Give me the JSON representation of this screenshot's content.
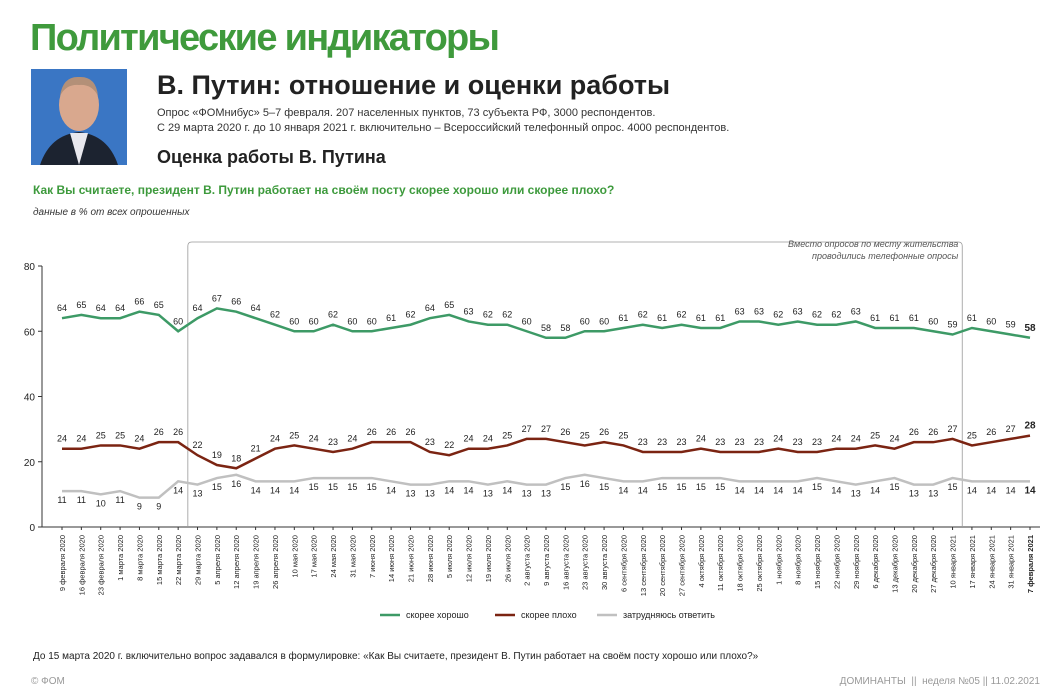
{
  "header": {
    "title": "Политические индикаторы",
    "subtitle": "В. Путин: отношение и оценки работы",
    "notes": [
      "Опрос «ФОМнибус» 5–7 февраля. 207 населенных пунктов, 73 субъекта РФ, 3000 респондентов.",
      "С 29 марта 2020 г. до 10 января 2021 г. включительно – Всероссийский телефонный опрос. 4000 респондентов."
    ],
    "section": "Оценка работы В. Путина",
    "question": "Как Вы считаете, президент В. Путин работает на своём посту скорее хорошо или скорее плохо?",
    "units": "данные в % от всех опрошенных"
  },
  "chart_data": {
    "type": "line",
    "categories": [
      "9 февраля 2020",
      "16 февраля 2020",
      "23 февраля 2020",
      "1 марта 2020",
      "8 марта 2020",
      "15 марта 2020",
      "22 марта 2020",
      "29 марта 2020",
      "5 апреля 2020",
      "12 апреля 2020",
      "19 апреля 2020",
      "26 апреля 2020",
      "10 мая 2020",
      "17 мая 2020",
      "24 мая 2020",
      "31 мая 2020",
      "7 июня 2020",
      "14 июня 2020",
      "21 июня 2020",
      "28 июня 2020",
      "5 июля 2020",
      "12 июля 2020",
      "19 июля 2020",
      "26 июля 2020",
      "2 августа 2020",
      "9 августа 2020",
      "16 августа 2020",
      "23 августа 2020",
      "30 августа 2020",
      "6 сентября 2020",
      "13 сентября 2020",
      "20 сентября 2020",
      "27 сентября 2020",
      "4 октября 2020",
      "11 октября 2020",
      "18 октября 2020",
      "25 октября 2020",
      "1 ноября 2020",
      "8 ноября 2020",
      "15 ноября 2020",
      "22 ноября 2020",
      "29 ноября 2020",
      "6 декабря 2020",
      "13 декабря 2020",
      "20 декабря 2020",
      "27 декабря 2020",
      "10 января 2021",
      "17 января 2021",
      "24 января 2021",
      "31 января 2021",
      "7 февраля 2021"
    ],
    "series": [
      {
        "name": "скорее хорошо",
        "color": "#3d9a66",
        "values": [
          64,
          65,
          64,
          64,
          66,
          65,
          60,
          64,
          67,
          66,
          64,
          62,
          60,
          60,
          62,
          60,
          60,
          61,
          62,
          64,
          65,
          63,
          62,
          62,
          60,
          58,
          58,
          60,
          60,
          61,
          62,
          61,
          62,
          61,
          61,
          63,
          63,
          62,
          63,
          62,
          62,
          63,
          61,
          61,
          61,
          60,
          59,
          61,
          60,
          59,
          58
        ]
      },
      {
        "name": "скорее плохо",
        "color": "#7b2412",
        "values": [
          24,
          24,
          25,
          25,
          24,
          26,
          26,
          22,
          19,
          18,
          21,
          24,
          25,
          24,
          23,
          24,
          26,
          26,
          26,
          23,
          22,
          24,
          24,
          25,
          27,
          27,
          26,
          25,
          26,
          25,
          23,
          23,
          23,
          24,
          23,
          23,
          23,
          24,
          23,
          23,
          24,
          24,
          25,
          24,
          26,
          26,
          27,
          25,
          26,
          27,
          28
        ]
      },
      {
        "name": "затрудняюсь ответить",
        "color": "#c0c0c0",
        "values": [
          11,
          11,
          10,
          11,
          9,
          9,
          14,
          13,
          15,
          16,
          14,
          14,
          14,
          15,
          15,
          15,
          15,
          14,
          13,
          13,
          14,
          14,
          13,
          14,
          13,
          13,
          15,
          16,
          15,
          14,
          14,
          15,
          15,
          15,
          15,
          14,
          14,
          14,
          14,
          15,
          14,
          13,
          14,
          15,
          13,
          13,
          15,
          14,
          14,
          14,
          14
        ]
      }
    ],
    "ylim": [
      0,
      80
    ],
    "yticks": [
      0,
      20,
      40,
      60,
      80
    ],
    "annotation": [
      "Вместо опросов по месту жительства",
      "проводились телефонные опросы"
    ]
  },
  "footnote": "До 15 марта 2020 г. включительно вопрос задавался в формулировке: «Как Вы считаете, президент В. Путин работает на своём посту хорошо или плохо?»",
  "footer": {
    "left": "© ФОМ",
    "right": "ДОМИНАНТЫ  ||  неделя №05 || 11.02.2021"
  }
}
